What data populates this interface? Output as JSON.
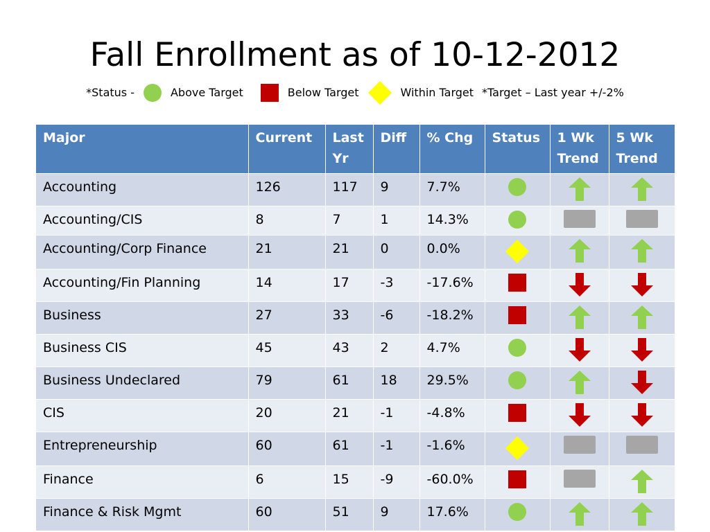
{
  "title": "Fall Enrollment as of 10-12-2012",
  "legend": {
    "status_prefix": "*Status -",
    "above_label": "Above Target",
    "below_label": "Below Target",
    "within_label": "Within Target",
    "target_note": "*Target – Last year +/-2%"
  },
  "colors": {
    "header_bg": "#4f81bd",
    "row_odd": "#d0d8e8",
    "row_even": "#e9edf4",
    "above": "#92d050",
    "below": "#c00000",
    "within": "#ffff00",
    "neutral": "#a6a6a6"
  },
  "columns": [
    "Major",
    "Current",
    "Last Yr",
    "Diff",
    "% Chg",
    "Status",
    "1 Wk Trend",
    "5 Wk Trend"
  ],
  "rows": [
    {
      "major": "Accounting",
      "current": "126",
      "last_yr": "117",
      "diff": "9",
      "pct_chg": "7.7%",
      "status": "above",
      "trend_1wk": "up",
      "trend_5wk": "up"
    },
    {
      "major": "Accounting/CIS",
      "current": "8",
      "last_yr": "7",
      "diff": "1",
      "pct_chg": "14.3%",
      "status": "above",
      "trend_1wk": "flat",
      "trend_5wk": "flat"
    },
    {
      "major": "Accounting/Corp Finance",
      "current": "21",
      "last_yr": "21",
      "diff": "0",
      "pct_chg": "0.0%",
      "status": "within",
      "trend_1wk": "up",
      "trend_5wk": "up"
    },
    {
      "major": "Accounting/Fin Planning",
      "current": "14",
      "last_yr": "17",
      "diff": "-3",
      "pct_chg": "-17.6%",
      "status": "below",
      "trend_1wk": "down",
      "trend_5wk": "down"
    },
    {
      "major": "Business",
      "current": "27",
      "last_yr": "33",
      "diff": "-6",
      "pct_chg": "-18.2%",
      "status": "below",
      "trend_1wk": "up",
      "trend_5wk": "up"
    },
    {
      "major": "Business CIS",
      "current": "45",
      "last_yr": "43",
      "diff": "2",
      "pct_chg": "4.7%",
      "status": "above",
      "trend_1wk": "down",
      "trend_5wk": "down"
    },
    {
      "major": "Business Undeclared",
      "current": "79",
      "last_yr": "61",
      "diff": "18",
      "pct_chg": "29.5%",
      "status": "above",
      "trend_1wk": "up",
      "trend_5wk": "down"
    },
    {
      "major": "CIS",
      "current": "20",
      "last_yr": "21",
      "diff": "-1",
      "pct_chg": "-4.8%",
      "status": "below",
      "trend_1wk": "down",
      "trend_5wk": "down"
    },
    {
      "major": "Entrepreneurship",
      "current": "60",
      "last_yr": "61",
      "diff": "-1",
      "pct_chg": "-1.6%",
      "status": "within",
      "trend_1wk": "flat",
      "trend_5wk": "flat"
    },
    {
      "major": "Finance",
      "current": "6",
      "last_yr": "15",
      "diff": "-9",
      "pct_chg": "-60.0%",
      "status": "below",
      "trend_1wk": "flat",
      "trend_5wk": "up"
    },
    {
      "major": "Finance & Risk Mgmt",
      "current": "60",
      "last_yr": "51",
      "diff": "9",
      "pct_chg": "17.6%",
      "status": "above",
      "trend_1wk": "up",
      "trend_5wk": "up"
    }
  ]
}
